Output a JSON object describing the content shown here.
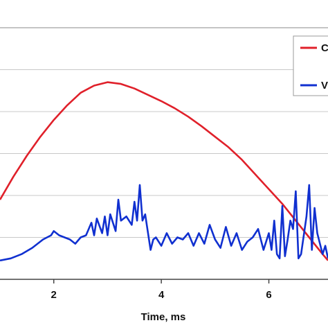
{
  "chart_data": {
    "type": "line",
    "title": "",
    "xlabel": "Time, ms",
    "ylabel": "",
    "xlim": [
      1.0,
      7.1
    ],
    "ylim": [
      0,
      6
    ],
    "x_ticks": [
      {
        "value": 2,
        "label": "2"
      },
      {
        "value": 4,
        "label": "4"
      },
      {
        "value": 6,
        "label": "6"
      }
    ],
    "y_gridlines": [
      1,
      2,
      3,
      4,
      5
    ],
    "grid": true,
    "legend_placement": "top-right",
    "series": [
      {
        "name": "C",
        "color": "#e0202a",
        "x": [
          1.0,
          1.25,
          1.5,
          1.75,
          2.0,
          2.25,
          2.5,
          2.75,
          3.0,
          3.25,
          3.5,
          3.75,
          4.0,
          4.25,
          4.5,
          4.75,
          5.0,
          5.25,
          5.5,
          5.75,
          6.0,
          6.25,
          6.5,
          6.75,
          7.0,
          7.1
        ],
        "y": [
          1.9,
          2.45,
          2.95,
          3.4,
          3.8,
          4.15,
          4.45,
          4.62,
          4.7,
          4.66,
          4.55,
          4.4,
          4.25,
          4.08,
          3.88,
          3.65,
          3.4,
          3.15,
          2.85,
          2.5,
          2.15,
          1.8,
          1.4,
          1.0,
          0.6,
          0.45
        ]
      },
      {
        "name": "V",
        "color": "#1030d0",
        "x": [
          1.0,
          1.2,
          1.4,
          1.6,
          1.8,
          1.95,
          2.0,
          2.1,
          2.3,
          2.4,
          2.5,
          2.6,
          2.7,
          2.75,
          2.8,
          2.9,
          2.95,
          3.0,
          3.05,
          3.15,
          3.2,
          3.25,
          3.35,
          3.45,
          3.5,
          3.55,
          3.6,
          3.65,
          3.7,
          3.8,
          3.85,
          3.9,
          4.0,
          4.1,
          4.2,
          4.3,
          4.4,
          4.5,
          4.6,
          4.7,
          4.8,
          4.9,
          5.0,
          5.1,
          5.2,
          5.3,
          5.4,
          5.5,
          5.6,
          5.7,
          5.8,
          5.9,
          6.0,
          6.05,
          6.1,
          6.15,
          6.2,
          6.25,
          6.3,
          6.35,
          6.4,
          6.45,
          6.5,
          6.55,
          6.6,
          6.7,
          6.75,
          6.8,
          6.85,
          6.9,
          7.0,
          7.05,
          7.1
        ],
        "y": [
          0.45,
          0.5,
          0.6,
          0.75,
          0.95,
          1.05,
          1.15,
          1.05,
          0.95,
          0.85,
          1.0,
          1.05,
          1.35,
          1.05,
          1.45,
          1.1,
          1.5,
          1.05,
          1.55,
          1.15,
          1.9,
          1.4,
          1.5,
          1.3,
          1.85,
          1.4,
          2.25,
          1.4,
          1.55,
          0.7,
          0.95,
          1.0,
          0.8,
          1.1,
          0.85,
          1.0,
          0.95,
          1.1,
          0.8,
          1.1,
          0.85,
          1.3,
          0.95,
          0.75,
          1.25,
          0.8,
          1.1,
          0.7,
          0.9,
          1.0,
          1.2,
          0.7,
          1.1,
          0.7,
          1.4,
          0.6,
          0.5,
          1.75,
          0.55,
          0.95,
          1.4,
          1.2,
          2.1,
          0.5,
          0.6,
          1.5,
          2.25,
          0.7,
          1.7,
          1.1,
          0.6,
          0.8,
          0.5
        ]
      }
    ]
  }
}
